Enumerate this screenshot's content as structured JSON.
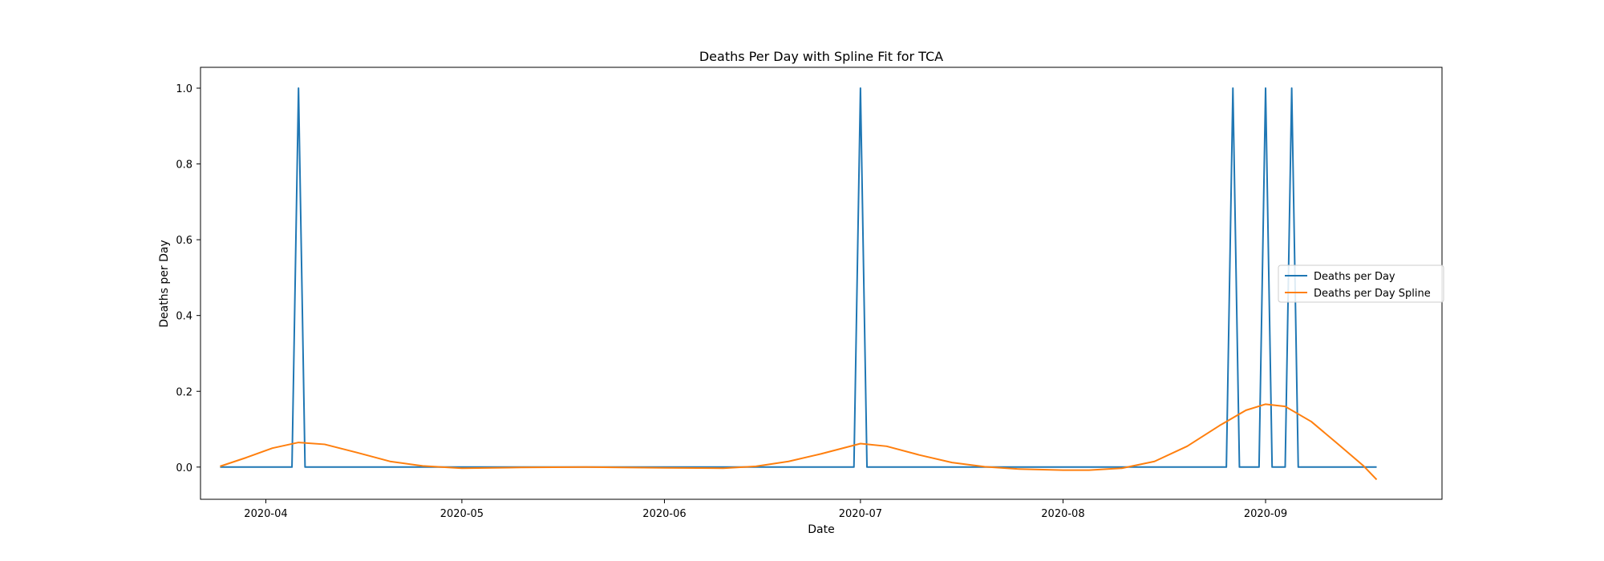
{
  "chart_data": {
    "type": "line",
    "title": "Deaths Per Day with Spline Fit for TCA",
    "xlabel": "Date",
    "ylabel": "Deaths per Day",
    "x_range": [
      "2020-03-22",
      "2020-09-28"
    ],
    "ylim": [
      -0.085,
      1.055
    ],
    "x_ticks": [
      "2020-04-01",
      "2020-05-01",
      "2020-06-01",
      "2020-07-01",
      "2020-08-01",
      "2020-09-01"
    ],
    "x_tick_labels": [
      "2020-04",
      "2020-05",
      "2020-06",
      "2020-07",
      "2020-08",
      "2020-09"
    ],
    "y_ticks": [
      0.0,
      0.2,
      0.4,
      0.6,
      0.8,
      1.0
    ],
    "y_tick_labels": [
      "0.0",
      "0.2",
      "0.4",
      "0.6",
      "0.8",
      "1.0"
    ],
    "grid": false,
    "legend_position": "center-right",
    "series": [
      {
        "name": "Deaths per Day",
        "color": "#1f77b4",
        "points": [
          [
            "2020-03-25",
            0
          ],
          [
            "2020-04-05",
            0
          ],
          [
            "2020-04-06",
            1
          ],
          [
            "2020-04-07",
            0
          ],
          [
            "2020-06-30",
            0
          ],
          [
            "2020-07-01",
            1
          ],
          [
            "2020-07-02",
            0
          ],
          [
            "2020-08-26",
            0
          ],
          [
            "2020-08-27",
            1
          ],
          [
            "2020-08-28",
            0
          ],
          [
            "2020-08-31",
            0
          ],
          [
            "2020-09-01",
            1
          ],
          [
            "2020-09-02",
            0
          ],
          [
            "2020-09-04",
            0
          ],
          [
            "2020-09-05",
            1
          ],
          [
            "2020-09-06",
            0
          ],
          [
            "2020-09-18",
            0
          ]
        ]
      },
      {
        "name": "Deaths per Day Spline",
        "color": "#ff7f0e",
        "points": [
          [
            "2020-03-25",
            0.002
          ],
          [
            "2020-03-29",
            0.025
          ],
          [
            "2020-04-02",
            0.05
          ],
          [
            "2020-04-06",
            0.065
          ],
          [
            "2020-04-10",
            0.06
          ],
          [
            "2020-04-15",
            0.038
          ],
          [
            "2020-04-20",
            0.015
          ],
          [
            "2020-04-25",
            0.003
          ],
          [
            "2020-05-01",
            -0.003
          ],
          [
            "2020-05-10",
            -0.001
          ],
          [
            "2020-05-20",
            0.0
          ],
          [
            "2020-06-01",
            -0.002
          ],
          [
            "2020-06-10",
            -0.003
          ],
          [
            "2020-06-15",
            0.002
          ],
          [
            "2020-06-20",
            0.015
          ],
          [
            "2020-06-25",
            0.035
          ],
          [
            "2020-07-01",
            0.062
          ],
          [
            "2020-07-05",
            0.055
          ],
          [
            "2020-07-10",
            0.032
          ],
          [
            "2020-07-15",
            0.012
          ],
          [
            "2020-07-20",
            0.001
          ],
          [
            "2020-07-25",
            -0.005
          ],
          [
            "2020-08-01",
            -0.008
          ],
          [
            "2020-08-05",
            -0.008
          ],
          [
            "2020-08-10",
            -0.003
          ],
          [
            "2020-08-15",
            0.015
          ],
          [
            "2020-08-20",
            0.055
          ],
          [
            "2020-08-25",
            0.11
          ],
          [
            "2020-08-29",
            0.15
          ],
          [
            "2020-09-01",
            0.166
          ],
          [
            "2020-09-04",
            0.16
          ],
          [
            "2020-09-08",
            0.12
          ],
          [
            "2020-09-12",
            0.062
          ],
          [
            "2020-09-16",
            0.003
          ],
          [
            "2020-09-18",
            -0.033
          ]
        ]
      }
    ]
  }
}
